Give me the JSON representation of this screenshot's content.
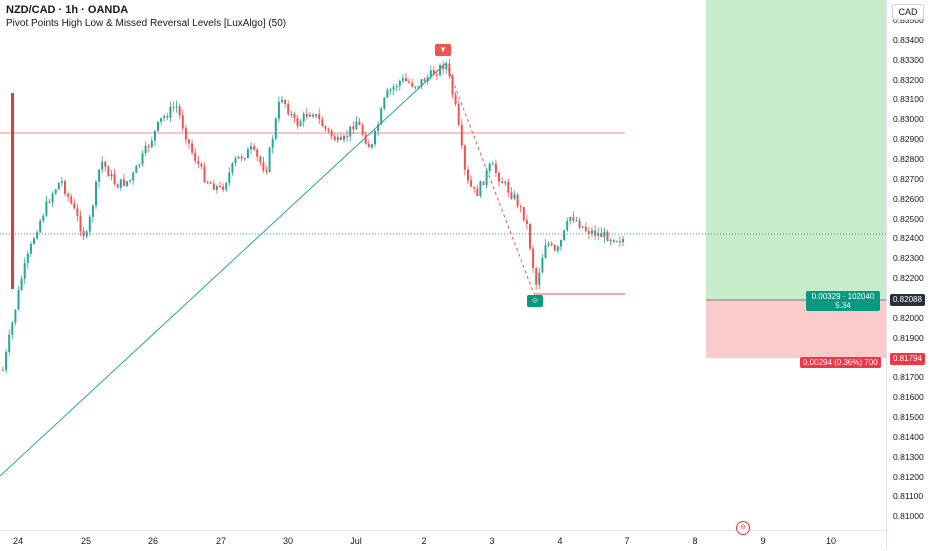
{
  "header": {
    "symbol_line": "NZD/CAD · 1h · OANDA",
    "indicator_line": "Pivot Points High Low & Missed Reversal Levels [LuxAlgo] (50)"
  },
  "currency_button": "CAD",
  "price_axis": {
    "ticks": [
      "0.83500",
      "0.83400",
      "0.83300",
      "0.83200",
      "0.83100",
      "0.83000",
      "0.82900",
      "0.82800",
      "0.82700",
      "0.82600",
      "0.82500",
      "0.82400",
      "0.82300",
      "0.82200",
      "0.82100",
      "0.82000",
      "0.81900",
      "0.81800",
      "0.81700",
      "0.81600",
      "0.81500",
      "0.81400",
      "0.81300",
      "0.81200",
      "0.81100",
      "0.81000"
    ],
    "current_price": "0.82088",
    "stop_price": "0.81794"
  },
  "time_axis": {
    "labels": [
      "24",
      "25",
      "26",
      "27",
      "30",
      "Jul",
      "2",
      "3",
      "4",
      "7",
      "8",
      "9",
      "10"
    ]
  },
  "position_tool": {
    "profit_line1": "0.00329 · 102040",
    "profit_line2": "5.34",
    "loss_text": "0.00294 (0.36%) 700"
  },
  "markers": {
    "high_marker": "▼",
    "low_marker": "⟐"
  },
  "event_icon": "⊖",
  "colors": {
    "up": "#26a69a",
    "down": "#ef5350",
    "profit_zone": "#c8ecc9",
    "loss_zone": "#fbcaca",
    "profit_tag": "#089981",
    "loss_tag": "#f23645"
  }
}
